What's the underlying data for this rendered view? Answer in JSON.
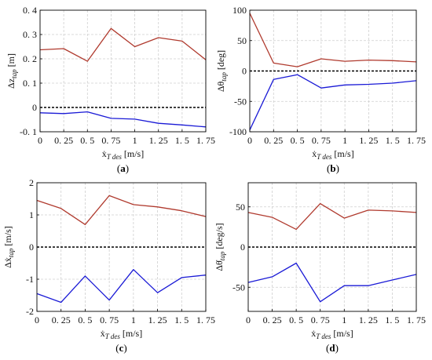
{
  "chart_data": [
    {
      "type": "line",
      "panel": "a",
      "xlabel_main": "ẋ",
      "xlabel_sub": "T des",
      "xlabel_unit": " [m/s]",
      "ylabel_main": "Δz",
      "ylabel_sub": "tap",
      "ylabel_unit": " [m]",
      "x": [
        0,
        0.25,
        0.5,
        0.75,
        1,
        1.25,
        1.5,
        1.75
      ],
      "x_tick_labels": [
        "0",
        "0. 25",
        "0. 5",
        "0. 75",
        "1",
        "1. 25",
        "1. 5",
        "1. 75"
      ],
      "xlim": [
        0,
        1.75
      ],
      "ylim": [
        -0.1,
        0.4
      ],
      "y_ticks": [
        -0.1,
        0,
        0.1,
        0.2,
        0.3,
        0.4
      ],
      "y_tick_labels": [
        "-0. 1",
        "0",
        "0. 1",
        "0. 2",
        "0. 3",
        "0. 4"
      ],
      "series": [
        {
          "color": "#b03a2e",
          "values": [
            0.237,
            0.242,
            0.19,
            0.325,
            0.25,
            0.287,
            0.273,
            0.196
          ]
        },
        {
          "color": "#1a1ad6",
          "values": [
            -0.022,
            -0.025,
            -0.018,
            -0.045,
            -0.048,
            -0.065,
            -0.072,
            -0.08
          ]
        }
      ],
      "zero_line": 0,
      "grid": true
    },
    {
      "type": "line",
      "panel": "b",
      "xlabel_main": "ẋ",
      "xlabel_sub": "T des",
      "xlabel_unit": " [m/s]",
      "ylabel_main": "Δθ",
      "ylabel_sub": "tap",
      "ylabel_unit": " [deg]",
      "x": [
        0,
        0.25,
        0.5,
        0.75,
        1,
        1.25,
        1.5,
        1.75
      ],
      "x_tick_labels": [
        "0",
        "0. 25",
        "0. 5",
        "0. 75",
        "1",
        "1. 25",
        "1. 5",
        "1. 75"
      ],
      "xlim": [
        0,
        1.75
      ],
      "ylim": [
        -100,
        100
      ],
      "y_ticks": [
        -100,
        -50,
        0,
        50,
        100
      ],
      "y_tick_labels": [
        "-100",
        "-50",
        "0",
        "50",
        "100"
      ],
      "series": [
        {
          "color": "#b03a2e",
          "values": [
            95,
            13,
            7,
            20,
            16,
            18,
            17,
            15
          ]
        },
        {
          "color": "#1a1ad6",
          "values": [
            -97,
            -14,
            -6,
            -28,
            -23,
            -22,
            -20,
            -16
          ]
        }
      ],
      "zero_line": 0,
      "grid": true
    },
    {
      "type": "line",
      "panel": "c",
      "xlabel_main": "ẋ",
      "xlabel_sub": "T des",
      "xlabel_unit": " [m/s]",
      "ylabel_main": "Δẋ",
      "ylabel_sub": "tap",
      "ylabel_unit": " [m/s]",
      "x": [
        0,
        0.25,
        0.5,
        0.75,
        1,
        1.25,
        1.5,
        1.75
      ],
      "x_tick_labels": [
        "0",
        "0. 25",
        "0. 5",
        "0. 75",
        "1",
        "1. 25",
        "1. 5",
        "1. 75"
      ],
      "xlim": [
        0,
        1.75
      ],
      "ylim": [
        -2,
        2
      ],
      "y_ticks": [
        -2,
        -1,
        0,
        1,
        2
      ],
      "y_tick_labels": [
        "-2",
        "-1",
        "0",
        "1",
        "2"
      ],
      "series": [
        {
          "color": "#b03a2e",
          "values": [
            1.45,
            1.2,
            0.7,
            1.6,
            1.32,
            1.25,
            1.13,
            0.95
          ]
        },
        {
          "color": "#1a1ad6",
          "values": [
            -1.45,
            -1.72,
            -0.9,
            -1.65,
            -0.7,
            -1.42,
            -0.95,
            -0.87
          ]
        }
      ],
      "zero_line": 0,
      "grid": true
    },
    {
      "type": "line",
      "panel": "d",
      "xlabel_main": "ẋ",
      "xlabel_sub": "T des",
      "xlabel_unit": " [m/s]",
      "ylabel_main": "Δθ̇",
      "ylabel_sub": "tap",
      "ylabel_unit": " [deg/s]",
      "x": [
        0,
        0.25,
        0.5,
        0.75,
        1,
        1.25,
        1.5,
        1.75
      ],
      "x_tick_labels": [
        "0",
        "0. 25",
        "0. 5",
        "0. 75",
        "1",
        "1. 25",
        "1. 5",
        "1. 75"
      ],
      "xlim": [
        0,
        1.75
      ],
      "ylim": [
        -80,
        80
      ],
      "y_ticks": [
        -50,
        0,
        50
      ],
      "y_tick_labels": [
        "-50",
        "0",
        "50"
      ],
      "series": [
        {
          "color": "#b03a2e",
          "values": [
            43,
            37,
            22,
            54,
            36,
            46,
            45,
            43
          ]
        },
        {
          "color": "#1a1ad6",
          "values": [
            -44,
            -37,
            -20,
            -68,
            -48,
            -48,
            -41,
            -34
          ]
        }
      ],
      "zero_line": 0,
      "grid": true
    }
  ]
}
